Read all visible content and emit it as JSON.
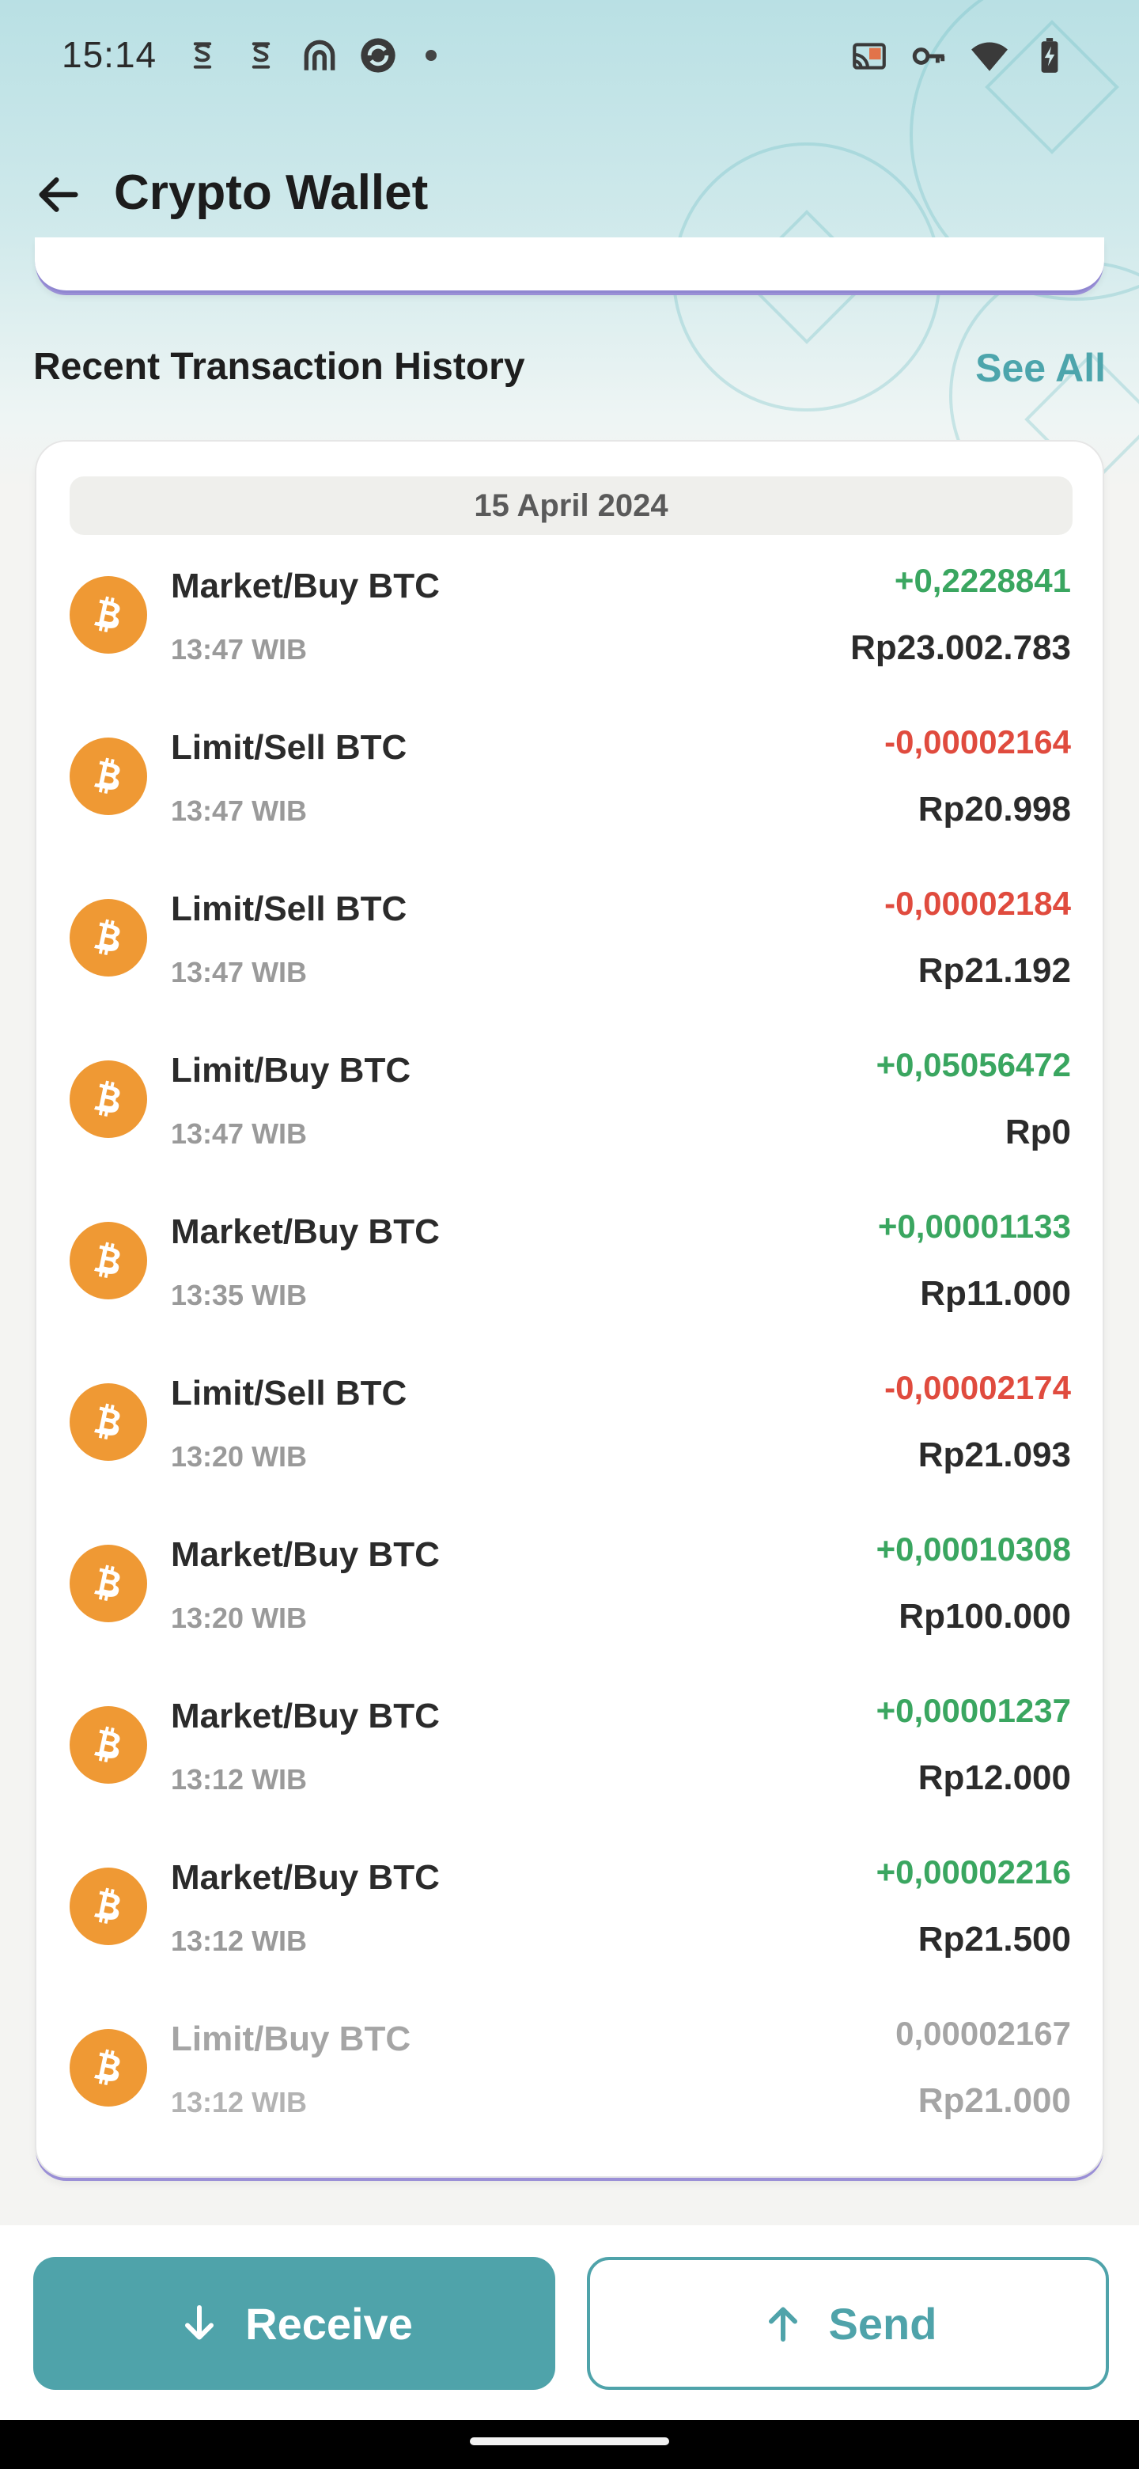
{
  "status_bar": {
    "time": "15:14",
    "left_icons": [
      "s-notification-icon",
      "s-notification-icon",
      "arc-app-icon",
      "sync-app-icon",
      "dot-icon"
    ],
    "right_icons": [
      "cast-icon",
      "vpn-key-icon",
      "wifi-icon",
      "battery-charging-icon"
    ]
  },
  "app_bar": {
    "back_icon": "arrow-left-icon",
    "title": "Crypto Wallet"
  },
  "section": {
    "title": "Recent Transaction History",
    "see_all": "See All"
  },
  "date_group": "15 April 2024",
  "coin_icon": "bitcoin-icon",
  "colors": {
    "accent": "#4fa3aa",
    "positive": "#3aa660",
    "negative": "#e04b3e",
    "coin": "#ef9934"
  },
  "transactions": [
    {
      "name": "Market/Buy BTC",
      "time": "13:47 WIB",
      "amount": "+0,2228841",
      "value": "Rp23.002.783",
      "direction": "pos"
    },
    {
      "name": "Limit/Sell BTC",
      "time": "13:47 WIB",
      "amount": "-0,00002164",
      "value": "Rp20.998",
      "direction": "neg"
    },
    {
      "name": "Limit/Sell BTC",
      "time": "13:47 WIB",
      "amount": "-0,00002184",
      "value": "Rp21.192",
      "direction": "neg"
    },
    {
      "name": "Limit/Buy BTC",
      "time": "13:47 WIB",
      "amount": "+0,05056472",
      "value": "Rp0",
      "direction": "pos"
    },
    {
      "name": "Market/Buy BTC",
      "time": "13:35 WIB",
      "amount": "+0,00001133",
      "value": "Rp11.000",
      "direction": "pos"
    },
    {
      "name": "Limit/Sell BTC",
      "time": "13:20 WIB",
      "amount": "-0,00002174",
      "value": "Rp21.093",
      "direction": "neg"
    },
    {
      "name": "Market/Buy BTC",
      "time": "13:20 WIB",
      "amount": "+0,00010308",
      "value": "Rp100.000",
      "direction": "pos"
    },
    {
      "name": "Market/Buy BTC",
      "time": "13:12 WIB",
      "amount": "+0,00001237",
      "value": "Rp12.000",
      "direction": "pos"
    },
    {
      "name": "Market/Buy BTC",
      "time": "13:12 WIB",
      "amount": "+0,00002216",
      "value": "Rp21.500",
      "direction": "pos"
    },
    {
      "name": "Limit/Buy BTC",
      "time": "13:12 WIB",
      "amount": "0,00002167",
      "value": "Rp21.000",
      "direction": "faded"
    }
  ],
  "actions": {
    "receive_label": "Receive",
    "receive_icon": "arrow-down-icon",
    "send_label": "Send",
    "send_icon": "arrow-up-icon"
  }
}
